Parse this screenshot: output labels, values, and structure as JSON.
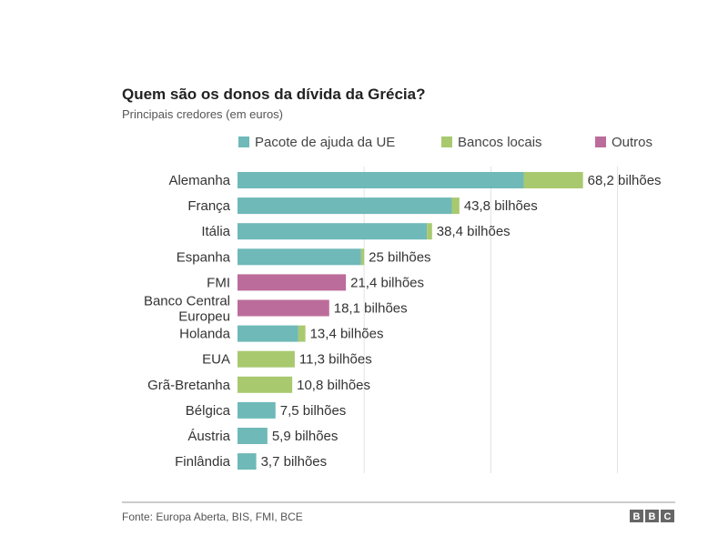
{
  "chart_data": {
    "type": "bar",
    "orientation": "horizontal",
    "stacked": true,
    "title": "Quem são os donos da dívida da Grécia?",
    "subtitle": "Principais credores (em euros)",
    "source": "Fonte: Europa Aberta, BIS, FMI, BCE",
    "logo": "BBC",
    "xlim": [
      0,
      86
    ],
    "gridlines": [
      0,
      25,
      50,
      75
    ],
    "legend_position": "top",
    "categories": [
      [
        "Alemanha"
      ],
      [
        "França"
      ],
      [
        "Itália"
      ],
      [
        "Espanha"
      ],
      [
        "FMI"
      ],
      [
        "Banco Central",
        "Europeu"
      ],
      [
        "Holanda"
      ],
      [
        "EUA"
      ],
      [
        "Grã-Bretanha"
      ],
      [
        "Bélgica"
      ],
      [
        "Áustria"
      ],
      [
        "Finlândia"
      ]
    ],
    "series": [
      {
        "name": "Pacote de ajuda da UE",
        "color": "#6fb9b8",
        "values": [
          56.5,
          42.3,
          37.4,
          24.4,
          0,
          0,
          12.0,
          0,
          0,
          7.5,
          5.9,
          3.7
        ]
      },
      {
        "name": "Bancos locais",
        "color": "#a9c96f",
        "values": [
          11.7,
          1.5,
          1.0,
          0.6,
          0,
          0,
          1.4,
          11.3,
          10.8,
          0,
          0,
          0
        ]
      },
      {
        "name": "Outros",
        "color": "#bc6c9b",
        "values": [
          0,
          0,
          0,
          0,
          21.4,
          18.1,
          0,
          0,
          0,
          0,
          0,
          0
        ]
      }
    ],
    "totals": [
      68.2,
      43.8,
      38.4,
      25,
      21.4,
      18.1,
      13.4,
      11.3,
      10.8,
      7.5,
      5.9,
      3.7
    ],
    "value_labels": [
      "68,2 bilhões",
      "43,8 bilhões",
      "38,4 bilhões",
      "25 bilhões",
      "21,4 bilhões",
      "18,1 bilhões",
      "13,4 bilhões",
      "11,3 bilhões",
      "10,8 bilhões",
      "7,5 bilhões",
      "5,9 bilhões",
      "3,7 bilhões"
    ]
  }
}
